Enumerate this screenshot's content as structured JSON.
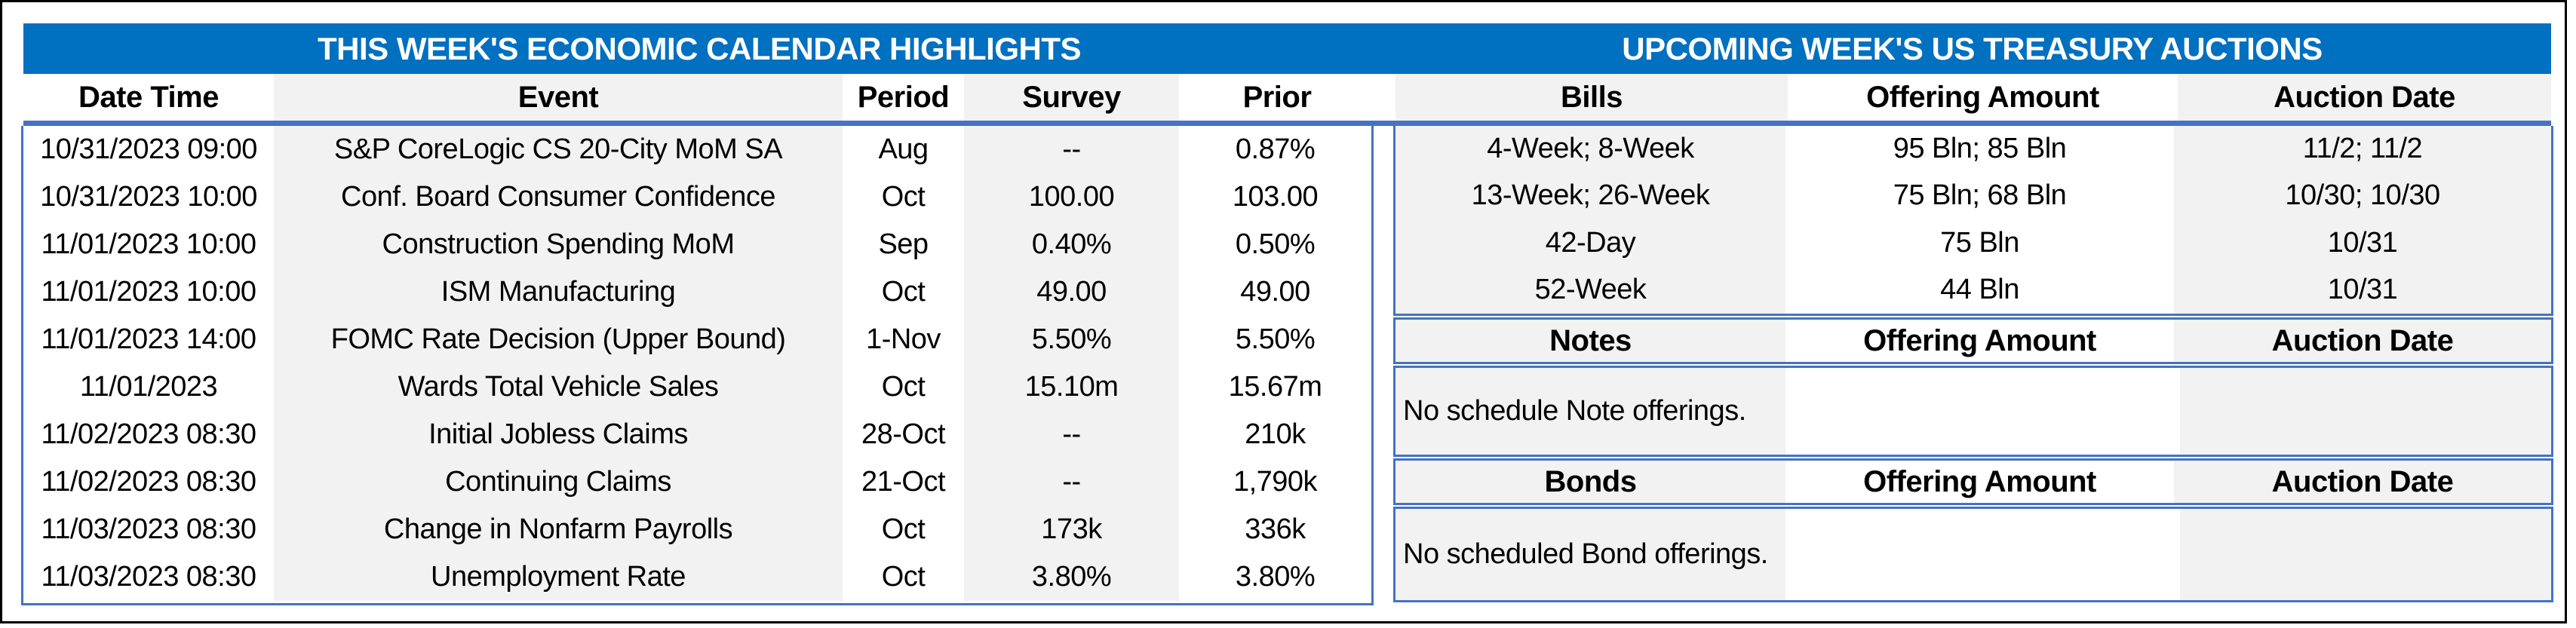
{
  "titles": {
    "left": "THIS WEEK'S ECONOMIC CALENDAR HIGHLIGHTS",
    "right": "UPCOMING WEEK'S US TREASURY AUCTIONS"
  },
  "calendar": {
    "columns": [
      "Date Time",
      "Event",
      "Period",
      "Survey",
      "Prior"
    ],
    "rows": [
      {
        "date_time": "10/31/2023 09:00",
        "event": "S&P CoreLogic CS 20-City MoM SA",
        "period": "Aug",
        "survey": "--",
        "prior": "0.87%"
      },
      {
        "date_time": "10/31/2023 10:00",
        "event": "Conf. Board Consumer Confidence",
        "period": "Oct",
        "survey": "100.00",
        "prior": "103.00"
      },
      {
        "date_time": "11/01/2023 10:00",
        "event": "Construction Spending MoM",
        "period": "Sep",
        "survey": "0.40%",
        "prior": "0.50%"
      },
      {
        "date_time": "11/01/2023 10:00",
        "event": "ISM Manufacturing",
        "period": "Oct",
        "survey": "49.00",
        "prior": "49.00"
      },
      {
        "date_time": "11/01/2023 14:00",
        "event": "FOMC Rate Decision (Upper Bound)",
        "period": "1-Nov",
        "survey": "5.50%",
        "prior": "5.50%"
      },
      {
        "date_time": "11/01/2023",
        "event": "Wards Total Vehicle Sales",
        "period": "Oct",
        "survey": "15.10m",
        "prior": "15.67m"
      },
      {
        "date_time": "11/02/2023 08:30",
        "event": "Initial Jobless Claims",
        "period": "28-Oct",
        "survey": "--",
        "prior": "210k"
      },
      {
        "date_time": "11/02/2023 08:30",
        "event": "Continuing Claims",
        "period": "21-Oct",
        "survey": "--",
        "prior": "1,790k"
      },
      {
        "date_time": "11/03/2023 08:30",
        "event": "Change in Nonfarm Payrolls",
        "period": "Oct",
        "survey": "173k",
        "prior": "336k"
      },
      {
        "date_time": "11/03/2023 08:30",
        "event": "Unemployment Rate",
        "period": "Oct",
        "survey": "3.80%",
        "prior": "3.80%"
      }
    ]
  },
  "auctions": {
    "bills": {
      "columns": [
        "Bills",
        "Offering Amount",
        "Auction Date"
      ],
      "rows": [
        {
          "security": "4-Week; 8-Week",
          "offering_amount": "95 Bln; 85 Bln",
          "auction_date": "11/2; 11/2"
        },
        {
          "security": "13-Week; 26-Week",
          "offering_amount": "75 Bln; 68 Bln",
          "auction_date": "10/30; 10/30"
        },
        {
          "security": "42-Day",
          "offering_amount": "75 Bln",
          "auction_date": "10/31"
        },
        {
          "security": "52-Week",
          "offering_amount": "44 Bln",
          "auction_date": "10/31"
        }
      ]
    },
    "notes": {
      "columns": [
        "Notes",
        "Offering Amount",
        "Auction Date"
      ],
      "message": "No schedule Note offerings."
    },
    "bonds": {
      "columns": [
        "Bonds",
        "Offering Amount",
        "Auction Date"
      ],
      "message": "No scheduled Bond offerings."
    }
  },
  "colors": {
    "title_bar_blue": "#0070C0",
    "border_blue": "#4472C4",
    "stripe_gray": "#F2F2F2",
    "title_text_white": "#FFFFFF",
    "text_black": "#000000",
    "frame_black": "#000000"
  }
}
